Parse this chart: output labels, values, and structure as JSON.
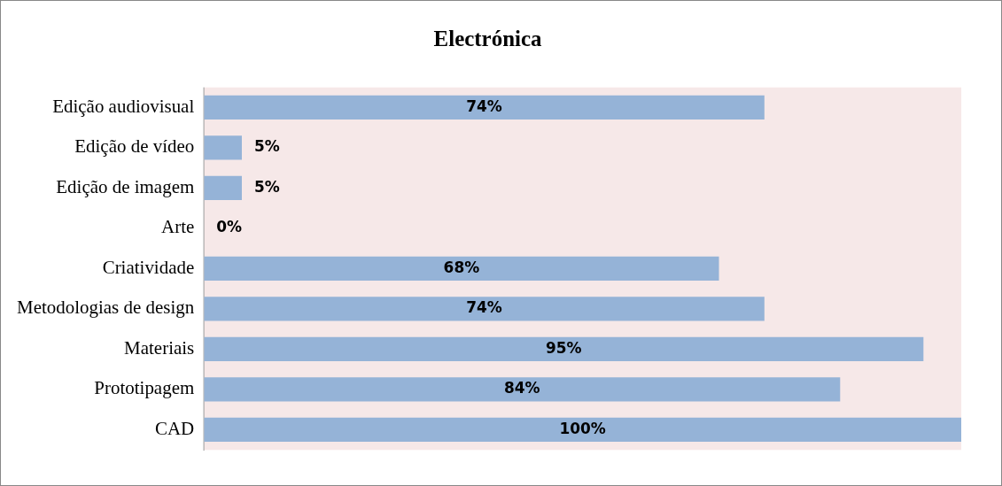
{
  "chart_data": {
    "type": "bar",
    "orientation": "horizontal",
    "title": "Electrónica",
    "categories": [
      "Edição audiovisual",
      "Edição de vídeo",
      "Edição de imagem",
      "Arte",
      "Criatividade",
      "Metodologias de design",
      "Materiais",
      "Prototipagem",
      "CAD"
    ],
    "values": [
      74,
      5,
      5,
      0,
      68,
      74,
      95,
      84,
      100
    ],
    "value_labels": [
      "74%",
      "5%",
      "5%",
      "0%",
      "68%",
      "74%",
      "95%",
      "84%",
      "100%"
    ],
    "color": "#95b3d7"
  }
}
